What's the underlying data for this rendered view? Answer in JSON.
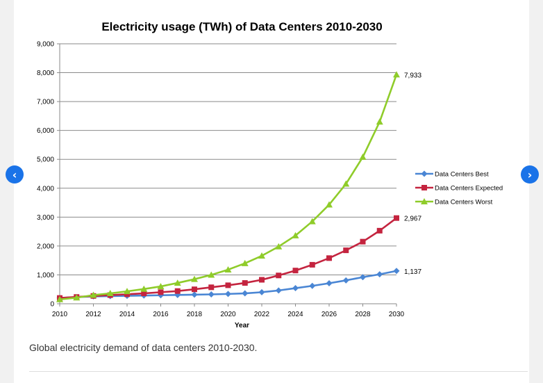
{
  "nav": {
    "prev_icon": "‹",
    "next_icon": "›",
    "accent_color": "#1a73e8"
  },
  "caption": "Global electricity demand of data centers 2010-2030.",
  "chart_data": {
    "type": "line",
    "title": "Electricity usage (TWh) of Data Centers 2010-2030",
    "xlabel": "Year",
    "ylabel": "",
    "x": [
      2010,
      2011,
      2012,
      2013,
      2014,
      2015,
      2016,
      2017,
      2018,
      2019,
      2020,
      2021,
      2022,
      2023,
      2024,
      2025,
      2026,
      2027,
      2028,
      2029,
      2030
    ],
    "xlim": [
      2010,
      2030
    ],
    "ylim": [
      0,
      9000
    ],
    "x_ticks": [
      "2010",
      "2012",
      "2014",
      "2016",
      "2018",
      "2020",
      "2022",
      "2024",
      "2026",
      "2028",
      "2030"
    ],
    "y_ticks": [
      "0",
      "1,000",
      "2,000",
      "3,000",
      "4,000",
      "5,000",
      "6,000",
      "7,000",
      "8,000",
      "9,000"
    ],
    "grid": "horizontal",
    "legend_position": "right",
    "series": [
      {
        "name": "Data Centers Best",
        "color": "#4a86d4",
        "marker": "diamond",
        "end_label": "1,137",
        "values": [
          200,
          230,
          255,
          265,
          275,
          285,
          295,
          305,
          315,
          325,
          340,
          360,
          400,
          460,
          540,
          620,
          710,
          810,
          920,
          1020,
          1137
        ]
      },
      {
        "name": "Data Centers Expected",
        "color": "#c4243f",
        "marker": "square",
        "end_label": "2,967",
        "values": [
          200,
          235,
          270,
          300,
          330,
          360,
          400,
          440,
          500,
          570,
          640,
          720,
          830,
          980,
          1150,
          1350,
          1580,
          1850,
          2150,
          2530,
          2967
        ]
      },
      {
        "name": "Data Centers Worst",
        "color": "#8fcc2a",
        "marker": "triangle",
        "end_label": "7,933",
        "values": [
          150,
          210,
          300,
          360,
          430,
          510,
          600,
          720,
          850,
          1000,
          1180,
          1400,
          1660,
          1980,
          2360,
          2850,
          3430,
          4150,
          5080,
          6300,
          7933
        ]
      }
    ]
  }
}
